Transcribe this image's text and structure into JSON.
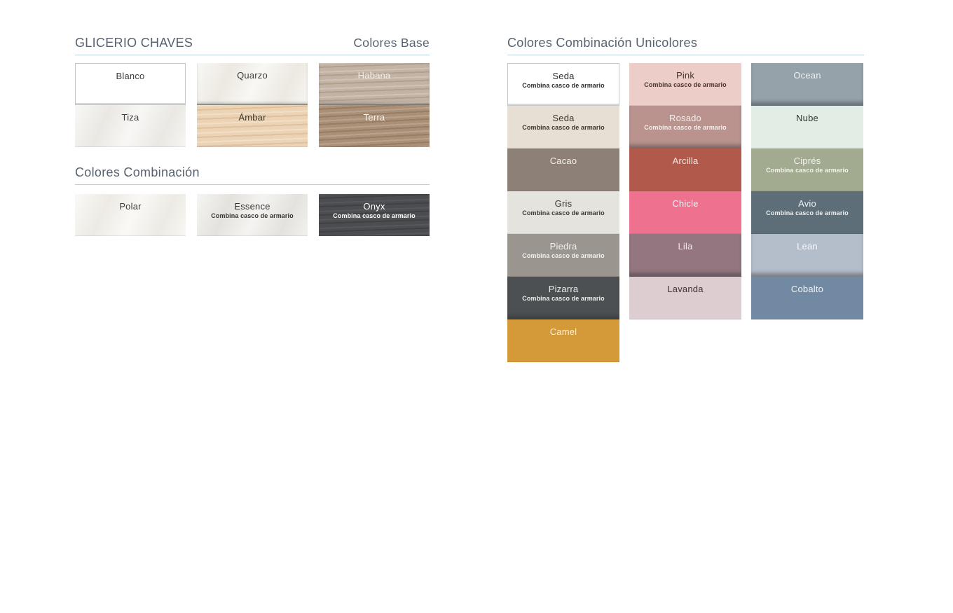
{
  "theme": {
    "heading_color": "#57626e",
    "rule_color": "#b9cfdc",
    "page_bg": "#ffffff"
  },
  "base": {
    "brand": "GLICERIO CHAVES",
    "title": "Colores Base",
    "columns": [
      {
        "swatches": [
          {
            "name": "Blanco",
            "bg": "#ffffff",
            "text": "#3d3d3d",
            "border": true
          },
          {
            "name": "Tiza",
            "bg": "#f1efeb",
            "text": "#3d3d3d",
            "texture": "marble"
          }
        ]
      },
      {
        "swatches": [
          {
            "name": "Quarzo",
            "bg": "#f3f0e9",
            "text": "#3d3d3d",
            "texture": "marble",
            "edge": "line"
          },
          {
            "name": "Ámbar",
            "bg": "#ecd3b4",
            "text": "#3f3a34",
            "texture": "wood-amber"
          }
        ]
      },
      {
        "swatches": [
          {
            "name": "Habana",
            "bg": "#c3b3a4",
            "text": "#f4efe9",
            "texture": "wood-habana",
            "edge": "line"
          },
          {
            "name": "Terra",
            "bg": "#aa9077",
            "text": "#f6f2ec",
            "texture": "wood-terra"
          }
        ]
      }
    ]
  },
  "combinacion": {
    "title": "Colores Combinación",
    "swatches": [
      {
        "name": "Polar",
        "bg": "#f4f2ec",
        "text": "#3d3d3d",
        "texture": "marble"
      },
      {
        "name": "Essence",
        "sub": "Combina casco de armario",
        "bg": "#e9e8e4",
        "text": "#35332f",
        "texture": "marble"
      },
      {
        "name": "Onyx",
        "sub": "Combina casco de armario",
        "bg": "#4b4d50",
        "text": "#ffffff",
        "texture": "stone-dark"
      }
    ]
  },
  "unicolores": {
    "title": "Colores Combinación Unicolores",
    "columns": [
      {
        "swatches": [
          {
            "name": "Seda",
            "sub": "Combina casco de armario",
            "bg": "#ffffff",
            "text": "#2e2e2e",
            "border": true
          },
          {
            "name": "Seda",
            "sub": "Combina casco de armario",
            "bg": "#e7dfd3",
            "text": "#3a362f"
          },
          {
            "name": "Cacao",
            "bg": "#8d8177",
            "text": "#f2f0ed"
          },
          {
            "name": "Gris",
            "sub": "Combina casco de armario",
            "bg": "#e5e3de",
            "text": "#38362f"
          },
          {
            "name": "Piedra",
            "sub": "Combina casco de armario",
            "bg": "#9a958e",
            "text": "#f3f2ef"
          },
          {
            "name": "Pizarra",
            "sub": "Combina casco de armario",
            "bg": "#4c5052",
            "text": "#eceeee",
            "edge": "shadow"
          },
          {
            "name": "Camel",
            "bg": "#d49939",
            "text": "#f7f0df"
          }
        ]
      },
      {
        "swatches": [
          {
            "name": "Pink",
            "sub": "Combina casco de armario",
            "bg": "#eccdc8",
            "text": "#463530"
          },
          {
            "name": "Rosado",
            "sub": "Combina casco de armario",
            "bg": "#bb938e",
            "text": "#f6eeec",
            "edge": "shadow"
          },
          {
            "name": "Arcilla",
            "bg": "#b15a4c",
            "text": "#f8e9e5"
          },
          {
            "name": "Chicle",
            "bg": "#ef7190",
            "text": "#fdf0f3"
          },
          {
            "name": "Lila",
            "bg": "#937680",
            "text": "#f2ebee",
            "edge": "shadow"
          },
          {
            "name": "Lavanda",
            "bg": "#ddccd0",
            "text": "#3d3337"
          }
        ]
      },
      {
        "swatches": [
          {
            "name": "Ocean",
            "bg": "#95a2aa",
            "text": "#ecf0f2",
            "edge": "shadow"
          },
          {
            "name": "Nube",
            "bg": "#e2ede5",
            "text": "#2f3430"
          },
          {
            "name": "Ciprés",
            "sub": "Combina casco de armario",
            "bg": "#a2aa90",
            "text": "#f3f4ee"
          },
          {
            "name": "Avio",
            "sub": "Combina casco de armario",
            "bg": "#5d6e79",
            "text": "#eef2f3"
          },
          {
            "name": "Lean",
            "bg": "#b4bdca",
            "text": "#fafbfd",
            "edge": "shadow"
          },
          {
            "name": "Cobalto",
            "bg": "#7289a3",
            "text": "#f0f4f8"
          }
        ]
      }
    ]
  }
}
